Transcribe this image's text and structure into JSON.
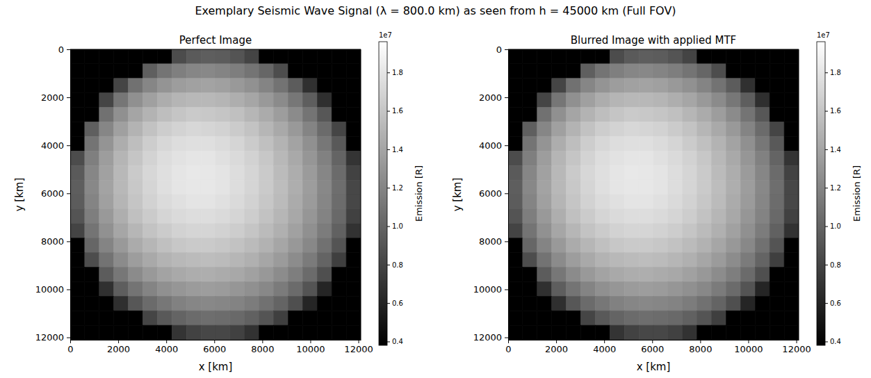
{
  "title": "Exemplary Seismic Wave Signal (λ = 800.0 km) as seen from h = 45000 km (Full FOV)",
  "chart_data": [
    {
      "type": "heatmap",
      "title": "Perfect Image",
      "x_label": "x [km]",
      "y_label": "y [km]",
      "xlim": [
        0,
        12100
      ],
      "ylim": [
        12100,
        0
      ],
      "xticks": [
        0,
        2000,
        4000,
        6000,
        8000,
        10000,
        12000
      ],
      "yticks": [
        0,
        2000,
        4000,
        6000,
        8000,
        10000,
        12000
      ],
      "x_bins": [
        0,
        605,
        1210,
        1815,
        2420,
        3025,
        3630,
        4235,
        4840,
        5445,
        6050,
        6655,
        7260,
        7865,
        8470,
        9075,
        9680,
        10285,
        10890,
        11495,
        12100
      ],
      "y_bins": [
        0,
        605,
        1210,
        1815,
        2420,
        3025,
        3630,
        4235,
        4840,
        5445,
        6050,
        6655,
        7260,
        7865,
        8470,
        9075,
        9680,
        10285,
        10890,
        11495,
        12100
      ],
      "values": [
        [
          0.38,
          0.38,
          0.38,
          0.38,
          0.38,
          0.38,
          0.38,
          0.85,
          0.94,
          0.96,
          0.95,
          0.9,
          0.8,
          0.38,
          0.38,
          0.38,
          0.38,
          0.38,
          0.38,
          0.38
        ],
        [
          0.38,
          0.38,
          0.38,
          0.38,
          0.38,
          0.97,
          1.1,
          1.17,
          1.21,
          1.22,
          1.2,
          1.16,
          1.1,
          1.01,
          0.86,
          0.38,
          0.38,
          0.38,
          0.38,
          0.38
        ],
        [
          0.38,
          0.38,
          0.38,
          0.81,
          1.08,
          1.21,
          1.3,
          1.35,
          1.38,
          1.39,
          1.37,
          1.33,
          1.28,
          1.2,
          1.09,
          0.95,
          0.68,
          0.38,
          0.38,
          0.38
        ],
        [
          0.38,
          0.38,
          0.81,
          1.11,
          1.27,
          1.37,
          1.45,
          1.5,
          1.52,
          1.52,
          1.5,
          1.46,
          1.41,
          1.33,
          1.24,
          1.12,
          0.96,
          0.67,
          0.38,
          0.38
        ],
        [
          0.38,
          0.38,
          1.08,
          1.27,
          1.4,
          1.49,
          1.56,
          1.6,
          1.63,
          1.62,
          1.6,
          1.57,
          1.51,
          1.44,
          1.35,
          1.24,
          1.1,
          0.92,
          0.38,
          0.38
        ],
        [
          0.38,
          0.97,
          1.21,
          1.37,
          1.49,
          1.58,
          1.65,
          1.69,
          1.71,
          1.7,
          1.68,
          1.64,
          1.59,
          1.51,
          1.43,
          1.33,
          1.2,
          1.04,
          0.81,
          0.38
        ],
        [
          0.38,
          1.1,
          1.3,
          1.45,
          1.56,
          1.65,
          1.71,
          1.75,
          1.76,
          1.76,
          1.74,
          1.7,
          1.64,
          1.57,
          1.49,
          1.39,
          1.27,
          1.12,
          0.93,
          0.38
        ],
        [
          0.85,
          1.17,
          1.35,
          1.5,
          1.6,
          1.69,
          1.75,
          1.78,
          1.8,
          1.8,
          1.77,
          1.73,
          1.68,
          1.61,
          1.52,
          1.43,
          1.31,
          1.18,
          1.0,
          0.7
        ],
        [
          0.94,
          1.21,
          1.38,
          1.52,
          1.63,
          1.71,
          1.76,
          1.8,
          1.82,
          1.81,
          1.79,
          1.75,
          1.7,
          1.63,
          1.54,
          1.45,
          1.34,
          1.21,
          1.04,
          0.79
        ],
        [
          0.96,
          1.22,
          1.39,
          1.52,
          1.62,
          1.7,
          1.76,
          1.8,
          1.81,
          1.81,
          1.79,
          1.75,
          1.7,
          1.63,
          1.55,
          1.46,
          1.35,
          1.22,
          1.06,
          0.82
        ],
        [
          0.95,
          1.2,
          1.37,
          1.5,
          1.6,
          1.68,
          1.74,
          1.77,
          1.79,
          1.79,
          1.77,
          1.73,
          1.68,
          1.61,
          1.54,
          1.44,
          1.34,
          1.21,
          1.05,
          0.82
        ],
        [
          0.9,
          1.16,
          1.33,
          1.46,
          1.57,
          1.64,
          1.7,
          1.73,
          1.75,
          1.75,
          1.73,
          1.7,
          1.65,
          1.58,
          1.51,
          1.42,
          1.31,
          1.19,
          1.03,
          0.78
        ],
        [
          0.8,
          1.1,
          1.28,
          1.41,
          1.51,
          1.59,
          1.64,
          1.68,
          1.7,
          1.7,
          1.68,
          1.65,
          1.6,
          1.54,
          1.47,
          1.38,
          1.27,
          1.15,
          0.98,
          0.69
        ],
        [
          0.38,
          1.01,
          1.2,
          1.33,
          1.44,
          1.51,
          1.57,
          1.61,
          1.63,
          1.63,
          1.61,
          1.58,
          1.54,
          1.48,
          1.41,
          1.32,
          1.22,
          1.08,
          0.9,
          0.38
        ],
        [
          0.38,
          0.86,
          1.09,
          1.24,
          1.35,
          1.43,
          1.49,
          1.52,
          1.54,
          1.55,
          1.54,
          1.51,
          1.47,
          1.41,
          1.34,
          1.25,
          1.14,
          1.0,
          0.77,
          0.38
        ],
        [
          0.38,
          0.38,
          0.95,
          1.12,
          1.24,
          1.33,
          1.39,
          1.43,
          1.45,
          1.46,
          1.44,
          1.42,
          1.38,
          1.32,
          1.25,
          1.16,
          1.04,
          0.87,
          0.38,
          0.38
        ],
        [
          0.38,
          0.38,
          0.68,
          0.96,
          1.1,
          1.2,
          1.27,
          1.31,
          1.34,
          1.35,
          1.34,
          1.31,
          1.27,
          1.22,
          1.14,
          1.04,
          0.9,
          0.61,
          0.38,
          0.38
        ],
        [
          0.38,
          0.38,
          0.38,
          0.67,
          0.92,
          1.04,
          1.12,
          1.18,
          1.21,
          1.22,
          1.21,
          1.19,
          1.15,
          1.08,
          1.0,
          0.87,
          0.61,
          0.38,
          0.38,
          0.38
        ],
        [
          0.38,
          0.38,
          0.38,
          0.38,
          0.38,
          0.81,
          0.93,
          1.0,
          1.04,
          1.06,
          1.05,
          1.03,
          0.98,
          0.9,
          0.77,
          0.38,
          0.38,
          0.38,
          0.38,
          0.38
        ],
        [
          0.38,
          0.38,
          0.38,
          0.38,
          0.38,
          0.38,
          0.38,
          0.7,
          0.79,
          0.82,
          0.82,
          0.78,
          0.69,
          0.38,
          0.38,
          0.38,
          0.38,
          0.38,
          0.38,
          0.38
        ]
      ],
      "colorbar": {
        "label": "Emission [R]",
        "offset_label": "1e7",
        "range": [
          0.38,
          1.96
        ],
        "ticks": [
          0.4,
          0.6,
          0.8,
          {
            "value": 1,
            "label": "1.0"
          },
          1.2,
          1.4,
          1.6,
          1.8
        ]
      }
    },
    {
      "type": "heatmap",
      "title": "Blurred Image with applied MTF",
      "x_label": "x [km]",
      "y_label": "y [km]",
      "xlim": [
        0,
        12100
      ],
      "ylim": [
        12100,
        0
      ],
      "xticks": [
        0,
        2000,
        4000,
        6000,
        8000,
        10000,
        12000
      ],
      "yticks": [
        0,
        2000,
        4000,
        6000,
        8000,
        10000,
        12000
      ],
      "x_bins": [
        0,
        605,
        1210,
        1815,
        2420,
        3025,
        3630,
        4235,
        4840,
        5445,
        6050,
        6655,
        7260,
        7865,
        8470,
        9075,
        9680,
        10285,
        10890,
        11495,
        12100
      ],
      "y_bins": [
        0,
        605,
        1210,
        1815,
        2420,
        3025,
        3630,
        4235,
        4840,
        5445,
        6050,
        6655,
        7260,
        7865,
        8470,
        9075,
        9680,
        10285,
        10890,
        11495,
        12100
      ],
      "values": [
        [
          0.38,
          0.38,
          0.38,
          0.38,
          0.38,
          0.38,
          0.38,
          0.85,
          0.94,
          0.96,
          0.95,
          0.9,
          0.8,
          0.38,
          0.38,
          0.38,
          0.38,
          0.38,
          0.38,
          0.38
        ],
        [
          0.38,
          0.38,
          0.38,
          0.38,
          0.38,
          0.97,
          1.1,
          1.17,
          1.21,
          1.22,
          1.2,
          1.16,
          1.1,
          1.01,
          0.86,
          0.38,
          0.38,
          0.38,
          0.38,
          0.38
        ],
        [
          0.38,
          0.38,
          0.38,
          0.81,
          1.08,
          1.21,
          1.3,
          1.35,
          1.38,
          1.39,
          1.37,
          1.33,
          1.28,
          1.2,
          1.09,
          0.95,
          0.68,
          0.38,
          0.38,
          0.38
        ],
        [
          0.38,
          0.38,
          0.81,
          1.11,
          1.27,
          1.37,
          1.45,
          1.5,
          1.52,
          1.52,
          1.5,
          1.46,
          1.41,
          1.33,
          1.24,
          1.12,
          0.96,
          0.67,
          0.38,
          0.38
        ],
        [
          0.38,
          0.38,
          1.08,
          1.27,
          1.4,
          1.49,
          1.56,
          1.6,
          1.63,
          1.62,
          1.6,
          1.57,
          1.51,
          1.44,
          1.35,
          1.24,
          1.1,
          0.92,
          0.38,
          0.38
        ],
        [
          0.38,
          0.97,
          1.21,
          1.37,
          1.49,
          1.58,
          1.65,
          1.69,
          1.71,
          1.7,
          1.68,
          1.64,
          1.59,
          1.51,
          1.43,
          1.33,
          1.2,
          1.04,
          0.81,
          0.38
        ],
        [
          0.38,
          1.1,
          1.3,
          1.45,
          1.56,
          1.65,
          1.71,
          1.75,
          1.76,
          1.76,
          1.74,
          1.7,
          1.64,
          1.57,
          1.49,
          1.39,
          1.27,
          1.12,
          0.93,
          0.38
        ],
        [
          0.85,
          1.17,
          1.35,
          1.5,
          1.6,
          1.69,
          1.75,
          1.78,
          1.8,
          1.8,
          1.77,
          1.73,
          1.68,
          1.61,
          1.52,
          1.43,
          1.31,
          1.18,
          1.0,
          0.7
        ],
        [
          0.94,
          1.21,
          1.38,
          1.52,
          1.63,
          1.71,
          1.76,
          1.8,
          1.82,
          1.81,
          1.79,
          1.75,
          1.7,
          1.63,
          1.54,
          1.45,
          1.34,
          1.21,
          1.04,
          0.79
        ],
        [
          0.96,
          1.22,
          1.39,
          1.52,
          1.62,
          1.7,
          1.76,
          1.8,
          1.81,
          1.81,
          1.79,
          1.75,
          1.7,
          1.63,
          1.55,
          1.46,
          1.35,
          1.22,
          1.06,
          0.82
        ],
        [
          0.95,
          1.2,
          1.37,
          1.5,
          1.6,
          1.68,
          1.74,
          1.77,
          1.79,
          1.79,
          1.77,
          1.73,
          1.68,
          1.61,
          1.54,
          1.44,
          1.34,
          1.21,
          1.05,
          0.82
        ],
        [
          0.9,
          1.16,
          1.33,
          1.46,
          1.57,
          1.64,
          1.7,
          1.73,
          1.75,
          1.75,
          1.73,
          1.7,
          1.65,
          1.58,
          1.51,
          1.42,
          1.31,
          1.19,
          1.03,
          0.78
        ],
        [
          0.8,
          1.1,
          1.28,
          1.41,
          1.51,
          1.59,
          1.64,
          1.68,
          1.7,
          1.7,
          1.68,
          1.65,
          1.6,
          1.54,
          1.47,
          1.38,
          1.27,
          1.15,
          0.98,
          0.69
        ],
        [
          0.38,
          1.01,
          1.2,
          1.33,
          1.44,
          1.51,
          1.57,
          1.61,
          1.63,
          1.63,
          1.61,
          1.58,
          1.54,
          1.48,
          1.41,
          1.32,
          1.22,
          1.08,
          0.9,
          0.38
        ],
        [
          0.38,
          0.86,
          1.09,
          1.24,
          1.35,
          1.43,
          1.49,
          1.52,
          1.54,
          1.55,
          1.54,
          1.51,
          1.47,
          1.41,
          1.34,
          1.25,
          1.14,
          1.0,
          0.77,
          0.38
        ],
        [
          0.38,
          0.38,
          0.95,
          1.12,
          1.24,
          1.33,
          1.39,
          1.43,
          1.45,
          1.46,
          1.44,
          1.42,
          1.38,
          1.32,
          1.25,
          1.16,
          1.04,
          0.87,
          0.38,
          0.38
        ],
        [
          0.38,
          0.38,
          0.68,
          0.96,
          1.1,
          1.2,
          1.27,
          1.31,
          1.34,
          1.35,
          1.34,
          1.31,
          1.27,
          1.22,
          1.14,
          1.04,
          0.9,
          0.61,
          0.38,
          0.38
        ],
        [
          0.38,
          0.38,
          0.38,
          0.67,
          0.92,
          1.04,
          1.12,
          1.18,
          1.21,
          1.22,
          1.21,
          1.19,
          1.15,
          1.08,
          1.0,
          0.87,
          0.61,
          0.38,
          0.38,
          0.38
        ],
        [
          0.38,
          0.38,
          0.38,
          0.38,
          0.38,
          0.81,
          0.93,
          1.0,
          1.04,
          1.06,
          1.05,
          1.03,
          0.98,
          0.9,
          0.77,
          0.38,
          0.38,
          0.38,
          0.38,
          0.38
        ],
        [
          0.38,
          0.38,
          0.38,
          0.38,
          0.38,
          0.38,
          0.38,
          0.7,
          0.79,
          0.82,
          0.82,
          0.78,
          0.69,
          0.38,
          0.38,
          0.38,
          0.38,
          0.38,
          0.38,
          0.38
        ]
      ],
      "colorbar": {
        "label": "Emission [R]",
        "offset_label": "1e7",
        "range": [
          0.38,
          1.96
        ],
        "ticks": [
          0.4,
          0.6,
          0.8,
          {
            "value": 1,
            "label": "1.0"
          },
          1.2,
          1.4,
          1.6,
          1.8
        ]
      }
    }
  ]
}
